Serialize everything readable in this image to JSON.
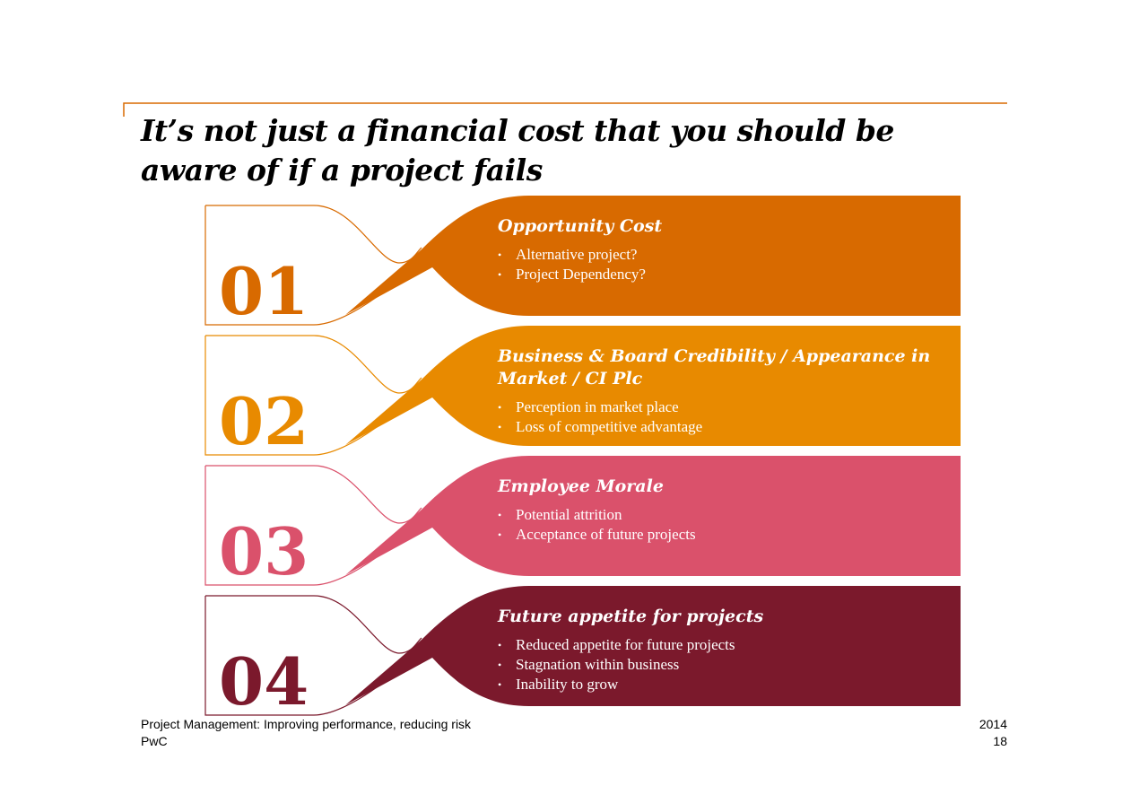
{
  "header": {
    "title": "It’s not just a financial cost that you should be aware of if a project fails"
  },
  "items": [
    {
      "number": "01",
      "heading": "Opportunity Cost",
      "bullets": [
        "Alternative project?",
        "Project Dependency?"
      ],
      "color": "#d86a00"
    },
    {
      "number": "02",
      "heading": "Business & Board Credibility / Appearance in Market / CI Plc",
      "bullets": [
        "Perception in market place",
        "Loss of competitive advantage"
      ],
      "color": "#e88a00"
    },
    {
      "number": "03",
      "heading": "Employee Morale",
      "bullets": [
        "Potential attrition",
        "Acceptance of future projects"
      ],
      "color": "#da516b"
    },
    {
      "number": "04",
      "heading": "Future appetite for projects",
      "bullets": [
        "Reduced appetite for future projects",
        "Stagnation within business",
        "Inability to grow"
      ],
      "color": "#7b192c"
    }
  ],
  "footer": {
    "left": [
      "Project Management: Improving performance, reducing risk",
      "PwC"
    ],
    "right": [
      "2014",
      "18"
    ]
  }
}
